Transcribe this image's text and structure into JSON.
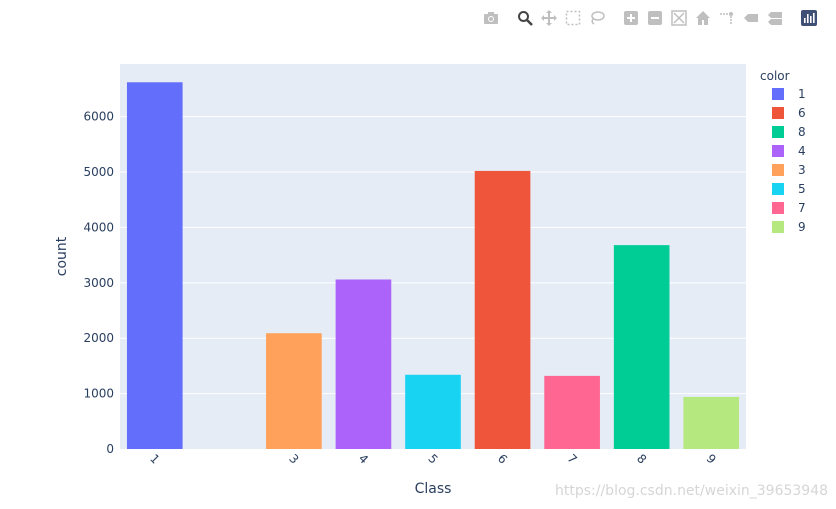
{
  "toolbar": {
    "icons": [
      "camera-icon",
      "zoom-icon",
      "pan-icon",
      "box-select-icon",
      "lasso-icon",
      "zoom-in-icon",
      "zoom-out-icon",
      "autoscale-icon",
      "reset-axes-icon",
      "spike-lines-icon",
      "hover-closest-icon",
      "hover-compare-icon",
      "plotly-logo-icon"
    ]
  },
  "watermark": "https://blog.csdn.net/weixin_39653948",
  "colors": {
    "plot_bg": "#e5ecf6",
    "grid": "#ffffff",
    "text": "#2a3f5f"
  },
  "chart_data": {
    "type": "bar",
    "xlabel": "Class",
    "ylabel": "count",
    "ylim": [
      0,
      6950
    ],
    "yticks": [
      0,
      1000,
      2000,
      3000,
      4000,
      5000,
      6000
    ],
    "xticks": [
      "1",
      "3",
      "4",
      "5",
      "6",
      "7",
      "8",
      "9"
    ],
    "x_numeric_range": [
      0.5,
      9.5
    ],
    "grid": true,
    "legend_title": "color",
    "legend_position": "right",
    "series": [
      {
        "name": "1",
        "x": 1,
        "value": 6620,
        "color": "#636efa"
      },
      {
        "name": "6",
        "x": 6,
        "value": 5020,
        "color": "#ef553b"
      },
      {
        "name": "8",
        "x": 8,
        "value": 3680,
        "color": "#00cc96"
      },
      {
        "name": "4",
        "x": 4,
        "value": 3060,
        "color": "#ab63fa"
      },
      {
        "name": "3",
        "x": 3,
        "value": 2090,
        "color": "#ffa15a"
      },
      {
        "name": "5",
        "x": 5,
        "value": 1340,
        "color": "#19d3f3"
      },
      {
        "name": "7",
        "x": 7,
        "value": 1320,
        "color": "#ff6692"
      },
      {
        "name": "9",
        "x": 9,
        "value": 940,
        "color": "#b6e880"
      }
    ]
  }
}
